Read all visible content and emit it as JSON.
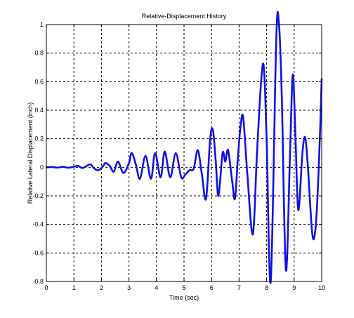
{
  "chart_data": {
    "type": "line",
    "title": "Relative-Displacement History",
    "xlabel": "Time (sec)",
    "ylabel": "Relative Lateral Displacement (inch)",
    "xlim": [
      0,
      10
    ],
    "ylim": [
      -0.8,
      1
    ],
    "xticks": [
      0,
      1,
      2,
      3,
      4,
      5,
      6,
      7,
      8,
      9,
      10
    ],
    "yticks": [
      -0.8,
      -0.6,
      -0.4,
      -0.2,
      0,
      0.2,
      0.4,
      0.6,
      0.8,
      1
    ],
    "grid": true,
    "grid_style": "dashed",
    "series_color": "#1010e6",
    "series": [
      {
        "points": [
          [
            0,
            0
          ],
          [
            0.2,
            0.002
          ],
          [
            0.4,
            -0.002
          ],
          [
            0.6,
            0.003
          ],
          [
            0.8,
            -0.003
          ],
          [
            1.0,
            0.004
          ],
          [
            1.15,
            0.01
          ],
          [
            1.3,
            -0.005
          ],
          [
            1.45,
            0.008
          ],
          [
            1.6,
            0.02
          ],
          [
            1.75,
            -0.01
          ],
          [
            1.9,
            -0.02
          ],
          [
            2.05,
            0.005
          ],
          [
            2.15,
            0.03
          ],
          [
            2.3,
            0.01
          ],
          [
            2.45,
            -0.03
          ],
          [
            2.6,
            0.04
          ],
          [
            2.8,
            -0.04
          ],
          [
            3.0,
            0.03
          ],
          [
            3.1,
            0.1
          ],
          [
            3.25,
            0.02
          ],
          [
            3.4,
            -0.08
          ],
          [
            3.6,
            0.08
          ],
          [
            3.8,
            -0.08
          ],
          [
            3.95,
            0.1
          ],
          [
            4.15,
            -0.07
          ],
          [
            4.3,
            0.11
          ],
          [
            4.5,
            -0.07
          ],
          [
            4.7,
            0.1
          ],
          [
            4.9,
            -0.07
          ],
          [
            5.05,
            -0.05
          ],
          [
            5.2,
            -0.02
          ],
          [
            5.35,
            -0.01
          ],
          [
            5.5,
            0.12
          ],
          [
            5.65,
            -0.05
          ],
          [
            5.8,
            -0.22
          ],
          [
            5.95,
            0.2
          ],
          [
            6.05,
            0.26
          ],
          [
            6.15,
            0.05
          ],
          [
            6.25,
            -0.2
          ],
          [
            6.4,
            0.1
          ],
          [
            6.5,
            0.04
          ],
          [
            6.6,
            0.12
          ],
          [
            6.75,
            -0.1
          ],
          [
            6.85,
            -0.22
          ],
          [
            6.95,
            0.05
          ],
          [
            7.05,
            0.28
          ],
          [
            7.15,
            0.35
          ],
          [
            7.3,
            -0.05
          ],
          [
            7.5,
            -0.47
          ],
          [
            7.65,
            0.1
          ],
          [
            7.8,
            0.6
          ],
          [
            7.9,
            0.7
          ],
          [
            8.0,
            0.2
          ],
          [
            8.15,
            -0.8
          ],
          [
            8.35,
            0.9
          ],
          [
            8.45,
            1.0
          ],
          [
            8.55,
            0.5
          ],
          [
            8.7,
            -0.72
          ],
          [
            8.85,
            0.1
          ],
          [
            8.95,
            0.65
          ],
          [
            9.05,
            0.2
          ],
          [
            9.15,
            -0.3
          ],
          [
            9.3,
            0.1
          ],
          [
            9.4,
            0.21
          ],
          [
            9.5,
            0.0
          ],
          [
            9.65,
            -0.45
          ],
          [
            9.75,
            -0.47
          ],
          [
            9.85,
            -0.2
          ],
          [
            9.95,
            0.3
          ],
          [
            10.0,
            0.62
          ]
        ]
      }
    ]
  }
}
